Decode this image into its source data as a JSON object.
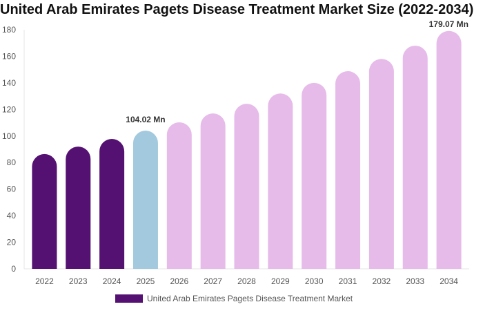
{
  "chart_data": {
    "type": "bar",
    "title": "United Arab Emirates Pagets Disease Treatment Market Size (2022-2034)",
    "categories": [
      "2022",
      "2023",
      "2024",
      "2025",
      "2026",
      "2027",
      "2028",
      "2029",
      "2030",
      "2031",
      "2032",
      "2033",
      "2034"
    ],
    "series": [
      {
        "name": "United Arab Emirates Pagets Disease Treatment Market",
        "values": [
          86.4,
          92.0,
          97.8,
          104.02,
          110.3,
          117.0,
          124.3,
          132.0,
          140.0,
          148.8,
          158.0,
          168.0,
          179.07
        ]
      }
    ],
    "bar_colors": [
      "#541172",
      "#541172",
      "#541172",
      "#a3c9de",
      "#e6bbe9",
      "#e6bbe9",
      "#e6bbe9",
      "#e6bbe9",
      "#e6bbe9",
      "#e6bbe9",
      "#e6bbe9",
      "#e6bbe9",
      "#e6bbe9"
    ],
    "data_labels": [
      {
        "index": 3,
        "text": "104.02 Mn"
      },
      {
        "index": 12,
        "text": "179.07 Mn"
      }
    ],
    "yticks": [
      0,
      20,
      40,
      60,
      80,
      100,
      120,
      140,
      160,
      180
    ],
    "ylim": [
      0,
      180
    ],
    "xlabel": "",
    "ylabel": "",
    "grid": false,
    "legend_position": "bottom"
  }
}
